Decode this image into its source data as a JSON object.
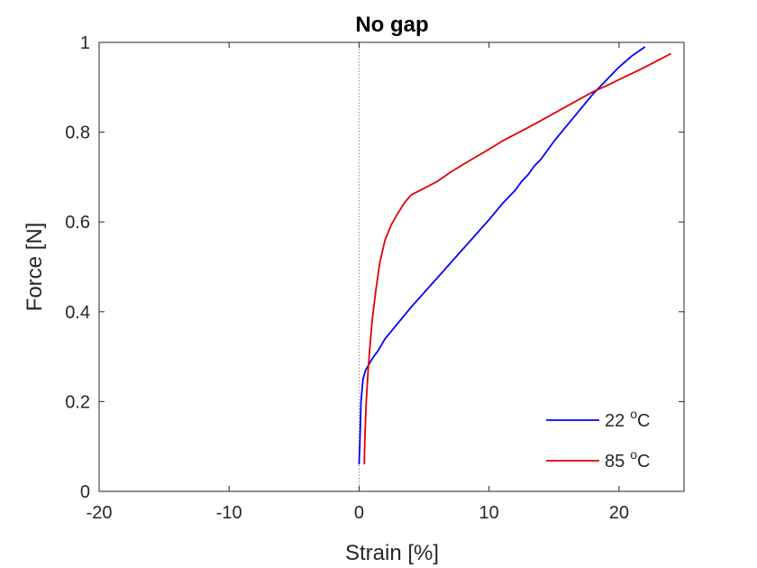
{
  "chart_data": {
    "type": "line",
    "title": "No gap",
    "xlabel": "Strain [%]",
    "ylabel": "Force [N]",
    "xlim": [
      -20,
      25
    ],
    "ylim": [
      0,
      1
    ],
    "xticks": [
      -20,
      -10,
      0,
      10,
      20
    ],
    "xtick_labels": [
      "-20",
      "-10",
      "0",
      "10",
      "20"
    ],
    "yticks": [
      0,
      0.2,
      0.4,
      0.6,
      0.8,
      1
    ],
    "ytick_labels": [
      "0",
      "0.2",
      "0.4",
      "0.6",
      "0.8",
      "1"
    ],
    "grid": false,
    "reference_line": {
      "x": 0,
      "style": "dotted"
    },
    "legend_position": "bottom-right",
    "series": [
      {
        "name": "22",
        "name_superscript": "o",
        "name_suffix": "C",
        "color": "#0000ff",
        "x": [
          0.0,
          0.05,
          0.1,
          0.15,
          0.3,
          0.5,
          0.8,
          1.0,
          1.5,
          2.0,
          3.0,
          4.0,
          6.0,
          8.0,
          10.0,
          11.0,
          12.0,
          12.5,
          13.0,
          13.5,
          14.0,
          15.0,
          16.0,
          17.0,
          18.0,
          19.0,
          20.0,
          21.0,
          22.0
        ],
        "y": [
          0.06,
          0.1,
          0.15,
          0.2,
          0.25,
          0.27,
          0.285,
          0.295,
          0.315,
          0.34,
          0.375,
          0.41,
          0.475,
          0.54,
          0.605,
          0.64,
          0.67,
          0.69,
          0.705,
          0.725,
          0.74,
          0.78,
          0.815,
          0.85,
          0.885,
          0.915,
          0.945,
          0.97,
          0.99
        ]
      },
      {
        "name": "85",
        "name_superscript": "o",
        "name_suffix": "C",
        "color": "#e00000",
        "x": [
          0.4,
          0.45,
          0.55,
          0.7,
          0.8,
          1.0,
          1.3,
          1.6,
          2.0,
          2.5,
          3.0,
          3.5,
          4.0,
          5.0,
          6.0,
          7.0,
          8.0,
          9.0,
          10.0,
          11.0,
          12.0,
          13.0,
          14.0,
          15.0,
          16.0,
          17.0,
          18.0,
          19.0,
          20.0,
          21.0,
          22.0,
          23.0,
          24.0
        ],
        "y": [
          0.06,
          0.12,
          0.2,
          0.27,
          0.31,
          0.38,
          0.45,
          0.51,
          0.56,
          0.595,
          0.62,
          0.643,
          0.66,
          0.675,
          0.69,
          0.71,
          0.728,
          0.745,
          0.762,
          0.78,
          0.795,
          0.81,
          0.826,
          0.842,
          0.858,
          0.874,
          0.89,
          0.903,
          0.917,
          0.931,
          0.945,
          0.96,
          0.975
        ]
      }
    ]
  }
}
